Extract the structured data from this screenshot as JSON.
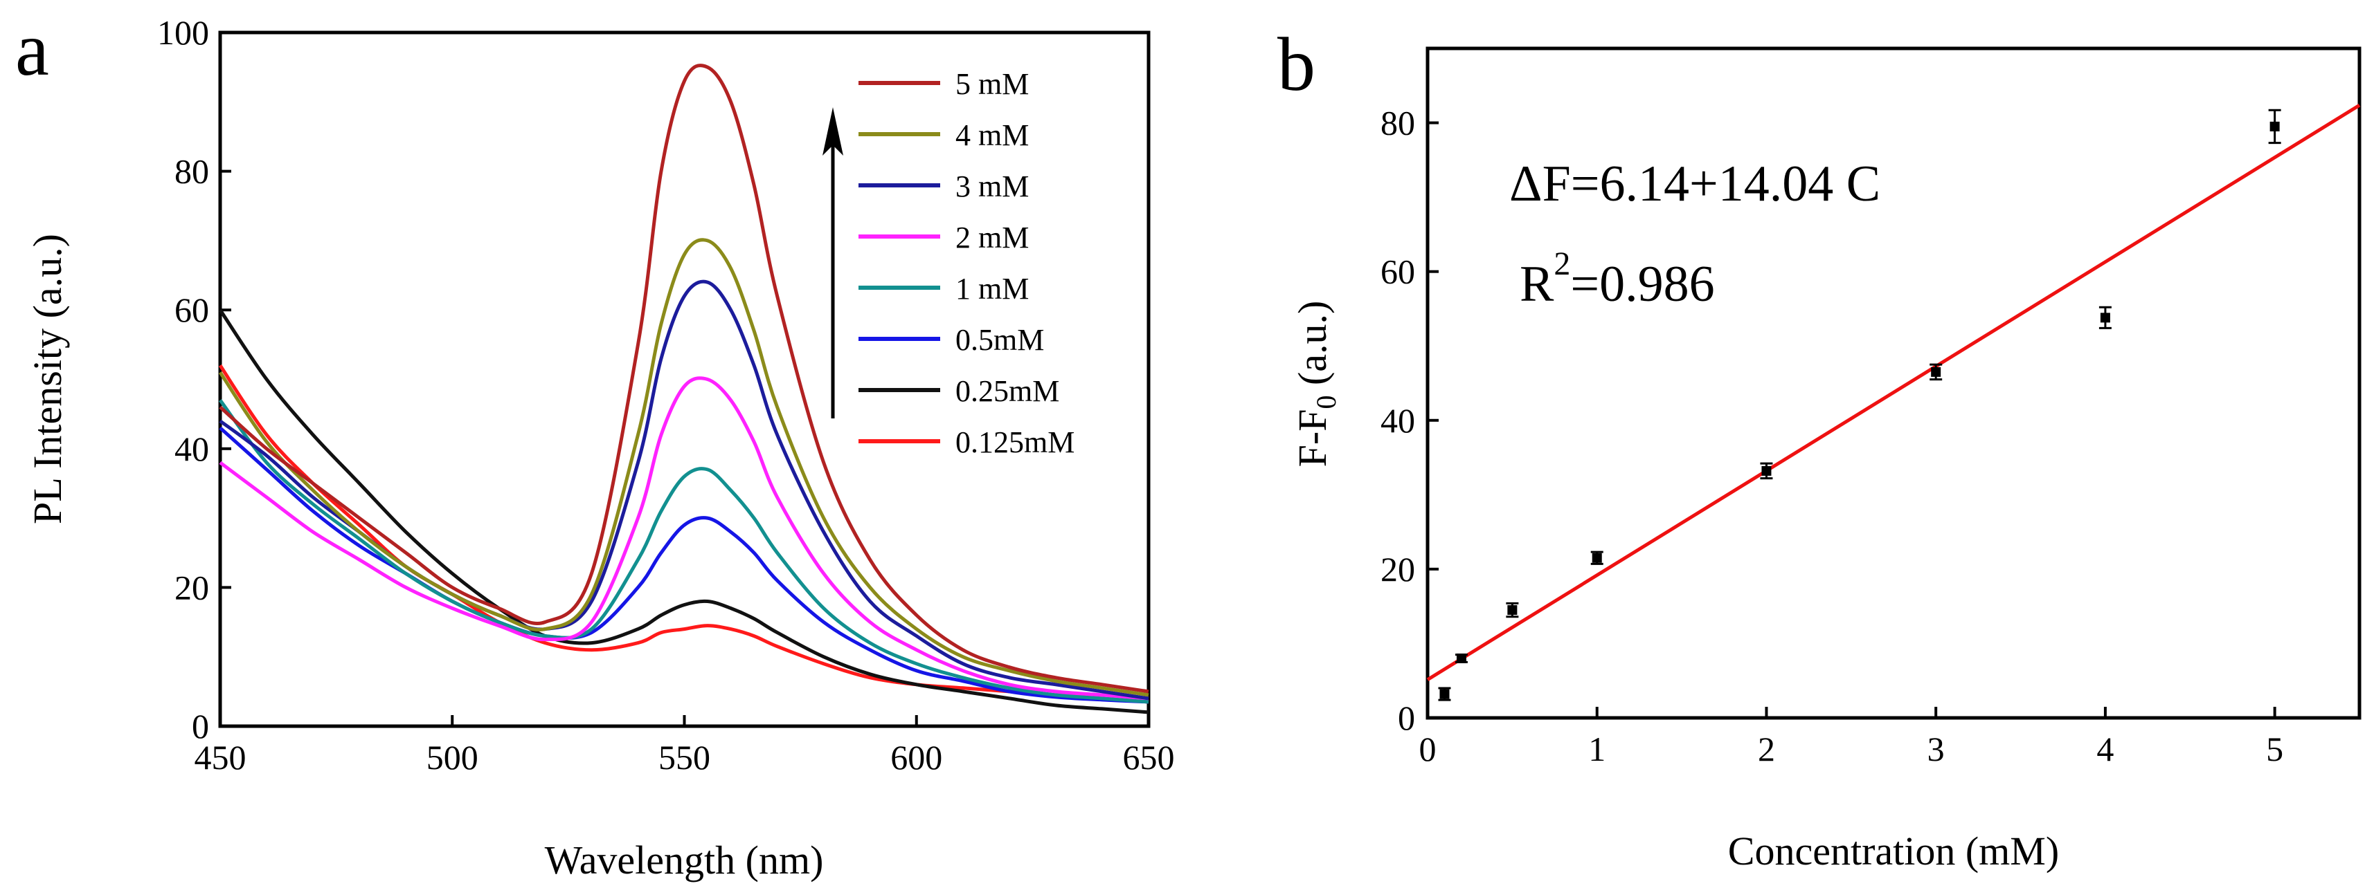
{
  "charts": [
    {
      "panel": "a",
      "chart_data": {
        "type": "line",
        "xlabel": "Wavelength (nm)",
        "ylabel": "PL Intensity (a.u.)",
        "xlim": [
          450,
          650
        ],
        "ylim": [
          0,
          100
        ],
        "xticks": [
          450,
          500,
          550,
          600,
          650
        ],
        "yticks": [
          0,
          20,
          40,
          60,
          80,
          100
        ],
        "x": [
          450,
          460,
          470,
          480,
          490,
          500,
          510,
          520,
          530,
          540,
          545,
          550,
          555,
          560,
          565,
          570,
          580,
          590,
          600,
          610,
          620,
          630,
          640,
          650
        ],
        "series": [
          {
            "name": "5  mM",
            "color": "#b22222",
            "values": [
              46,
              40,
              35,
              30,
              25,
              20,
              17,
              15,
              22,
              55,
              80,
              93,
              95,
              90,
              78,
              62,
              38,
              24,
              16,
              11,
              8.5,
              7,
              6,
              5
            ]
          },
          {
            "name": "4  mM",
            "color": "#8b8b1a",
            "values": [
              51,
              41,
              34,
              28,
              23,
              19,
              16,
              14,
              19,
              42,
              58,
              68,
              70,
              66,
              57,
              46,
              30,
              20,
              14,
              10,
              8,
              6.5,
              5.5,
              4.5
            ]
          },
          {
            "name": "3  mM",
            "color": "#1c1c9c",
            "values": [
              44,
              39,
              33,
              28,
              23,
              19,
              16,
              14,
              18,
              38,
              53,
              62,
              64,
              60,
              52,
              42,
              28,
              18,
              13,
              9,
              7,
              6,
              5,
              4
            ]
          },
          {
            "name": "2  mM",
            "color": "#ff22ff",
            "values": [
              38,
              33,
              28,
              24,
              20,
              17,
              14.5,
              12.5,
              15,
              30,
              42,
              49,
              50,
              47,
              41,
              33,
              22,
              15,
              11,
              8,
              6,
              5,
              4.5,
              4
            ]
          },
          {
            "name": "1  mM",
            "color": "#129090",
            "values": [
              47,
              38,
              32,
              27,
              22,
              18,
              15,
              13,
              14,
              24,
              31,
              36,
              37,
              34,
              30,
              25,
              17,
              12,
              9,
              7,
              5.5,
              4.5,
              4,
              3.5
            ]
          },
          {
            "name": "0.5mM",
            "color": "#1515e6",
            "values": [
              43,
              37,
              31,
              26,
              22,
              18,
              15,
              13,
              13.5,
              20,
              25,
              29,
              30,
              28,
              25,
              21,
              15,
              11,
              8,
              6.5,
              5,
              4.2,
              3.8,
              3.5
            ]
          },
          {
            "name": "0.25mM",
            "color": "#111111",
            "values": [
              60,
              50,
              42,
              35,
              28,
              22,
              17,
              13,
              12,
              14,
              16,
              17.5,
              18,
              17,
              15.5,
              13.5,
              10,
              7.5,
              6,
              5,
              4,
              3,
              2.5,
              2
            ]
          },
          {
            "name": "0.125mM",
            "color": "#ff1a1a",
            "values": [
              52,
              42,
              35,
              29,
              23,
              19,
              15,
              12,
              11,
              12,
              13.5,
              14,
              14.5,
              14,
              13,
              11.5,
              9,
              7,
              6,
              5.5,
              5,
              4.5,
              4,
              3.5
            ]
          }
        ],
        "annotations": [
          "arrow pointing up indicating increasing concentration"
        ]
      }
    },
    {
      "panel": "b",
      "chart_data": {
        "type": "scatter",
        "xlabel": "Concentration (mM)",
        "ylabel_main": "F-F",
        "ylabel_sub": "0",
        "ylabel_tail": " (a.u.)",
        "xlim": [
          0,
          5.5
        ],
        "ylim": [
          0,
          90
        ],
        "xticks": [
          0,
          1,
          2,
          3,
          4,
          5
        ],
        "yticks": [
          0,
          20,
          40,
          60,
          80
        ],
        "points": [
          {
            "x": 0.1,
            "y": 3.2,
            "err": 0.8
          },
          {
            "x": 0.2,
            "y": 8.0,
            "err": 0.5
          },
          {
            "x": 0.5,
            "y": 14.5,
            "err": 0.9
          },
          {
            "x": 1,
            "y": 21.5,
            "err": 0.8
          },
          {
            "x": 2,
            "y": 33.2,
            "err": 1.0
          },
          {
            "x": 3,
            "y": 46.5,
            "err": 1.0
          },
          {
            "x": 4,
            "y": 53.8,
            "err": 1.4
          },
          {
            "x": 5,
            "y": 79.5,
            "err": 2.2
          }
        ],
        "fit": {
          "intercept": 6.14,
          "slope": 14.04,
          "color": "#ee1111"
        },
        "equation": "ΔF=6.14+14.04 C",
        "r2_prefix": "R",
        "r2_sup": "2",
        "r2_value": "=0.986"
      }
    }
  ],
  "legend_title_hidden": ""
}
